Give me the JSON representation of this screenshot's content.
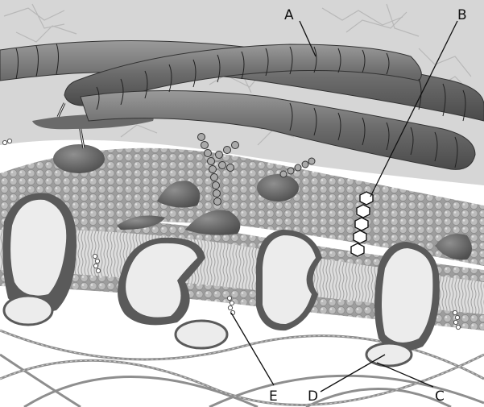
{
  "diagram": {
    "labels": [
      {
        "id": "A",
        "text": "A"
      },
      {
        "id": "B",
        "text": "B"
      },
      {
        "id": "C",
        "text": "C"
      },
      {
        "id": "D",
        "text": "D"
      },
      {
        "id": "E",
        "text": "E"
      }
    ]
  },
  "colors": {
    "background_top": "#d4d4d4",
    "fiber": "#6f6f6f",
    "membrane_bead": "#a7a7a7",
    "protein": "#5f5f5f",
    "protein_interior": "#ececec",
    "network": "#9a9a9a"
  }
}
